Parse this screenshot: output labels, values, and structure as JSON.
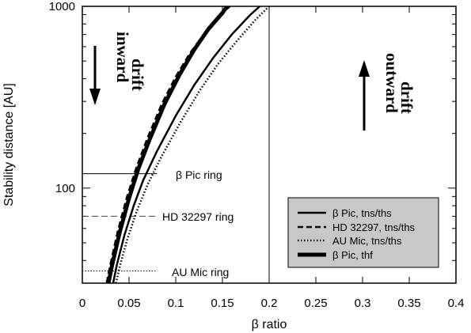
{
  "chart_data": {
    "type": "line",
    "xlabel": "β ratio",
    "ylabel": "Stability distance [AU]",
    "xlim": [
      0,
      0.4
    ],
    "ylim": [
      30,
      1000
    ],
    "yscale": "log",
    "x_ticks": [
      0,
      0.05,
      0.1,
      0.15,
      0.2,
      0.25,
      0.3,
      0.35,
      0.4
    ],
    "x_tick_labels": [
      "0",
      "0.05",
      "0.1",
      "0.15",
      "0.2",
      "0.25",
      "0.3",
      "0.35",
      "0.4"
    ],
    "y_tick_labels": [
      "100",
      "1000"
    ],
    "grid": false,
    "series": [
      {
        "name": "β Pic, tns/ths",
        "style": "solid",
        "width": 2.5,
        "x": [
          0.033,
          0.037,
          0.045,
          0.055,
          0.065,
          0.08,
          0.1,
          0.12,
          0.14,
          0.16,
          0.18,
          0.19
        ],
        "y": [
          30,
          38,
          55,
          80,
          110,
          160,
          250,
          370,
          520,
          700,
          900,
          1000
        ]
      },
      {
        "name": "HD 32297, tns/ths",
        "style": "dashed",
        "width": 2.5,
        "x": [
          0.026,
          0.03,
          0.038,
          0.048,
          0.058,
          0.07,
          0.085,
          0.1,
          0.115,
          0.13,
          0.145,
          0.158
        ],
        "y": [
          30,
          38,
          58,
          90,
          130,
          190,
          290,
          410,
          550,
          700,
          870,
          1000
        ]
      },
      {
        "name": "AU Mic, tns/ths",
        "style": "dotted",
        "width": 2.5,
        "x": [
          0.036,
          0.04,
          0.048,
          0.058,
          0.07,
          0.085,
          0.105,
          0.125,
          0.145,
          0.165,
          0.185,
          0.2
        ],
        "y": [
          30,
          37,
          52,
          74,
          105,
          150,
          230,
          340,
          480,
          640,
          840,
          1000
        ]
      },
      {
        "name": "β Pic, thf",
        "style": "solid",
        "width": 5,
        "x": [
          0.028,
          0.032,
          0.04,
          0.05,
          0.06,
          0.072,
          0.088,
          0.104,
          0.12,
          0.135,
          0.15,
          0.155
        ],
        "y": [
          30,
          38,
          57,
          88,
          128,
          185,
          290,
          420,
          580,
          750,
          920,
          1000
        ]
      }
    ],
    "rings": [
      {
        "label": "β Pic ring",
        "y": 120,
        "x_end": 0.08,
        "style": "solid"
      },
      {
        "label": "HD 32297 ring",
        "y": 70,
        "x_end": 0.08,
        "style": "dashed"
      },
      {
        "label": "AU Mic ring",
        "y": 35,
        "x_end": 0.08,
        "style": "dotted"
      }
    ],
    "vertical_line_x": 0.2,
    "annotations": {
      "inward": [
        "inward",
        "drift"
      ],
      "outward": [
        "outward",
        "drift"
      ]
    },
    "legend_placement": "bottom-right",
    "legend_background": "#c8c8c8"
  }
}
